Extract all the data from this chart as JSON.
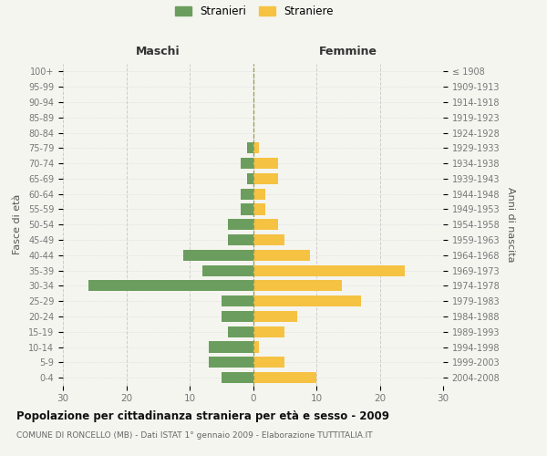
{
  "age_groups": [
    "100+",
    "95-99",
    "90-94",
    "85-89",
    "80-84",
    "75-79",
    "70-74",
    "65-69",
    "60-64",
    "55-59",
    "50-54",
    "45-49",
    "40-44",
    "35-39",
    "30-34",
    "25-29",
    "20-24",
    "15-19",
    "10-14",
    "5-9",
    "0-4"
  ],
  "birth_years": [
    "≤ 1908",
    "1909-1913",
    "1914-1918",
    "1919-1923",
    "1924-1928",
    "1929-1933",
    "1934-1938",
    "1939-1943",
    "1944-1948",
    "1949-1953",
    "1954-1958",
    "1959-1963",
    "1964-1968",
    "1969-1973",
    "1974-1978",
    "1979-1983",
    "1984-1988",
    "1989-1993",
    "1994-1998",
    "1999-2003",
    "2004-2008"
  ],
  "males": [
    0,
    0,
    0,
    0,
    0,
    1,
    2,
    1,
    2,
    2,
    4,
    4,
    11,
    8,
    26,
    5,
    5,
    4,
    7,
    7,
    5
  ],
  "females": [
    0,
    0,
    0,
    0,
    0,
    1,
    4,
    4,
    2,
    2,
    4,
    5,
    9,
    24,
    14,
    17,
    7,
    5,
    1,
    5,
    10
  ],
  "male_color": "#6b9e5e",
  "female_color": "#f5c242",
  "background_color": "#f5f5f0",
  "grid_color": "#cccccc",
  "center_line_color": "#999955",
  "title": "Popolazione per cittadinanza straniera per età e sesso - 2009",
  "subtitle": "COMUNE DI RONCELLO (MB) - Dati ISTAT 1° gennaio 2009 - Elaborazione TUTTITALIA.IT",
  "ylabel_left": "Fasce di età",
  "ylabel_right": "Anni di nascita",
  "maschi_label": "Maschi",
  "femmine_label": "Femmine",
  "legend_stranieri": "Stranieri",
  "legend_straniere": "Straniere",
  "xlim": 30,
  "bar_height": 0.72
}
